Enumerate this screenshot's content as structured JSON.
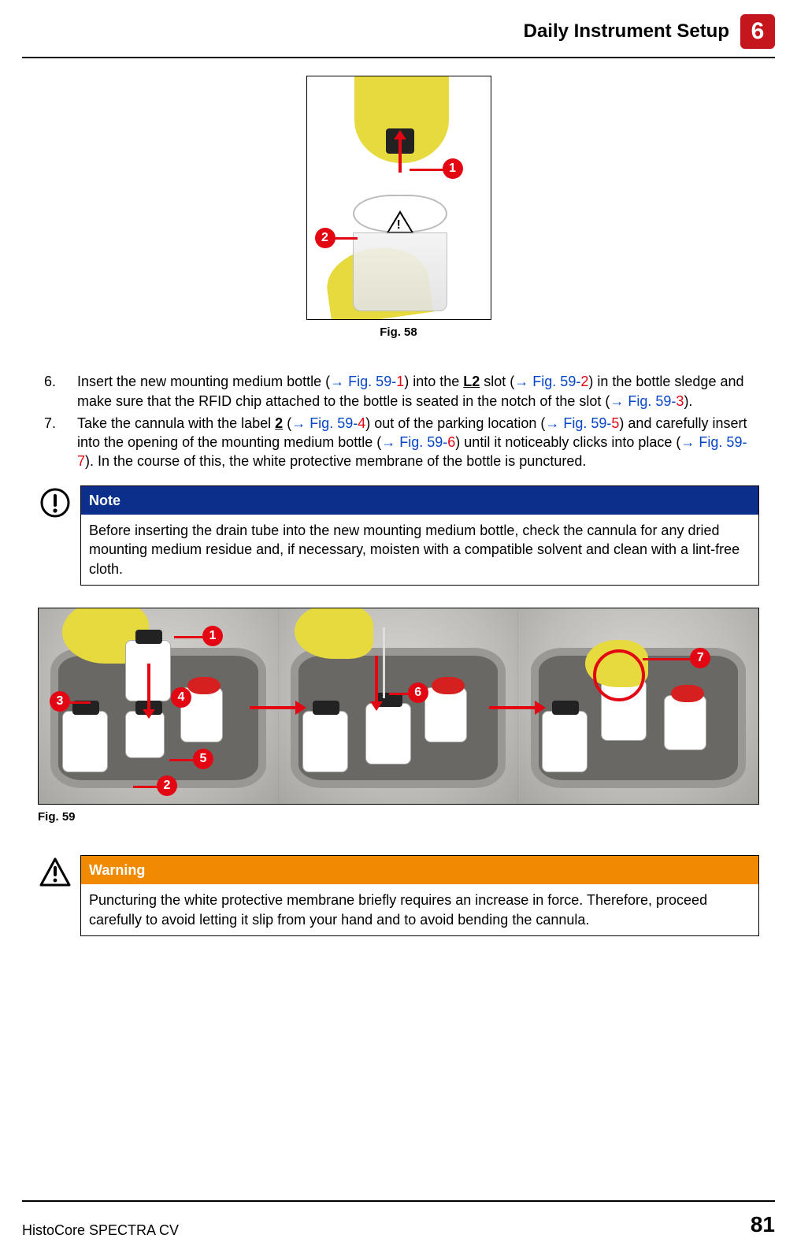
{
  "header": {
    "title": "Daily Instrument Setup",
    "chapter": "6"
  },
  "colors": {
    "accent_red": "#e30613",
    "accent_blue": "#0b2f8a",
    "accent_orange": "#f18a00",
    "link_blue": "#0645c8",
    "brand_red": "#c4161c"
  },
  "fig58": {
    "caption": "Fig.  58",
    "callouts": [
      "1",
      "2"
    ]
  },
  "steps": [
    {
      "num": "6.",
      "parts": [
        {
          "t": "Insert the new mounting medium bottle ("
        },
        {
          "t": "→ Fig.  59-",
          "cls": "xref"
        },
        {
          "t": "1",
          "cls": "xref-num"
        },
        {
          "t": ") into the "
        },
        {
          "t": "L2",
          "cls": "underline-strong"
        },
        {
          "t": " slot ("
        },
        {
          "t": "→ Fig.  59-",
          "cls": "xref"
        },
        {
          "t": "2",
          "cls": "xref-num"
        },
        {
          "t": ") in the bottle sledge and make sure that the RFID chip attached to the bottle is seated in the notch of the slot ("
        },
        {
          "t": "→ Fig.  59-",
          "cls": "xref"
        },
        {
          "t": "3",
          "cls": "xref-num"
        },
        {
          "t": ")."
        }
      ]
    },
    {
      "num": "7.",
      "parts": [
        {
          "t": "Take the cannula with the label "
        },
        {
          "t": "2",
          "cls": "underline-strong"
        },
        {
          "t": " ("
        },
        {
          "t": "→ Fig.  59-",
          "cls": "xref"
        },
        {
          "t": "4",
          "cls": "xref-num"
        },
        {
          "t": ") out of the parking location ("
        },
        {
          "t": "→ Fig.  59-",
          "cls": "xref"
        },
        {
          "t": "5",
          "cls": "xref-num"
        },
        {
          "t": ") and carefully insert into the opening of the mounting medium bottle ("
        },
        {
          "t": "→ Fig.  59-",
          "cls": "xref"
        },
        {
          "t": "6",
          "cls": "xref-num"
        },
        {
          "t": ") until it noticeably clicks into place ("
        },
        {
          "t": "→ Fig.  59-",
          "cls": "xref"
        },
        {
          "t": "7",
          "cls": "xref-num"
        },
        {
          "t": "). In the course of this, the white protective membrane of the bottle is punctured."
        }
      ]
    }
  ],
  "note": {
    "title": "Note",
    "body": "Before inserting the drain tube into the new mounting medium bottle, check the cannula for any dried mounting medium residue and, if necessary, moisten with a compatible solvent and clean with a lint-free cloth."
  },
  "fig59": {
    "caption": "Fig.  59",
    "callouts": [
      "1",
      "2",
      "3",
      "4",
      "5",
      "6",
      "7"
    ]
  },
  "warning": {
    "title": "Warning",
    "body": "Puncturing the white protective membrane briefly requires an increase in force. Therefore, proceed carefully to avoid letting it slip from your hand and to avoid bending the cannula."
  },
  "footer": {
    "product": "HistoCore SPECTRA CV",
    "page": "81"
  }
}
